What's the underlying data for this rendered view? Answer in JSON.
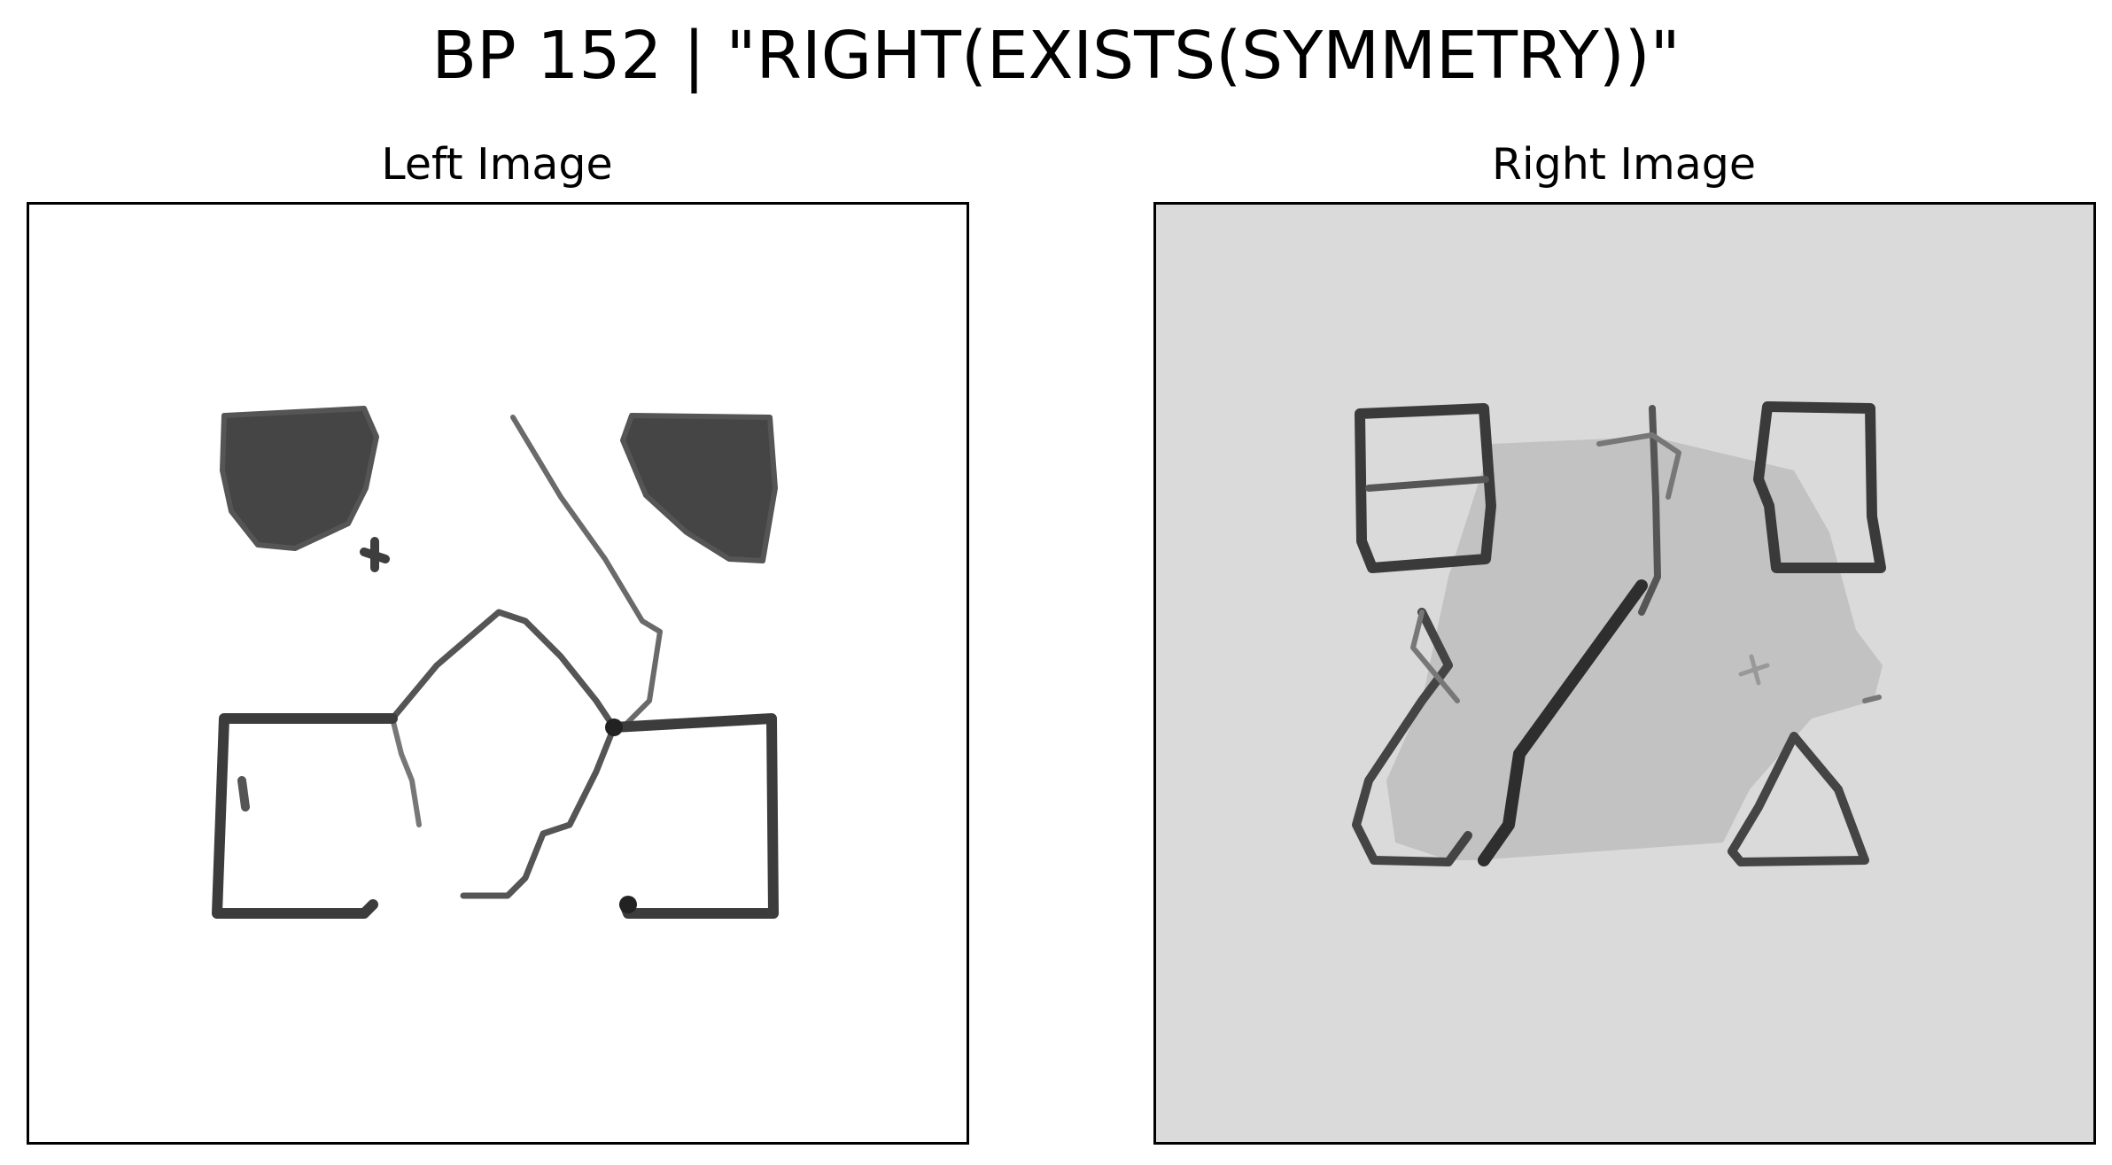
{
  "figure": {
    "title": "BP 152 | \"RIGHT(EXISTS(SYMMETRY))\""
  },
  "panels": [
    {
      "title": "Left Image",
      "background": "#ffffff",
      "ink": "#3a3a3a"
    },
    {
      "title": "Right Image",
      "background": "#dadada",
      "ink": "#3a3a3a",
      "fill": "#c2c2c2"
    }
  ]
}
